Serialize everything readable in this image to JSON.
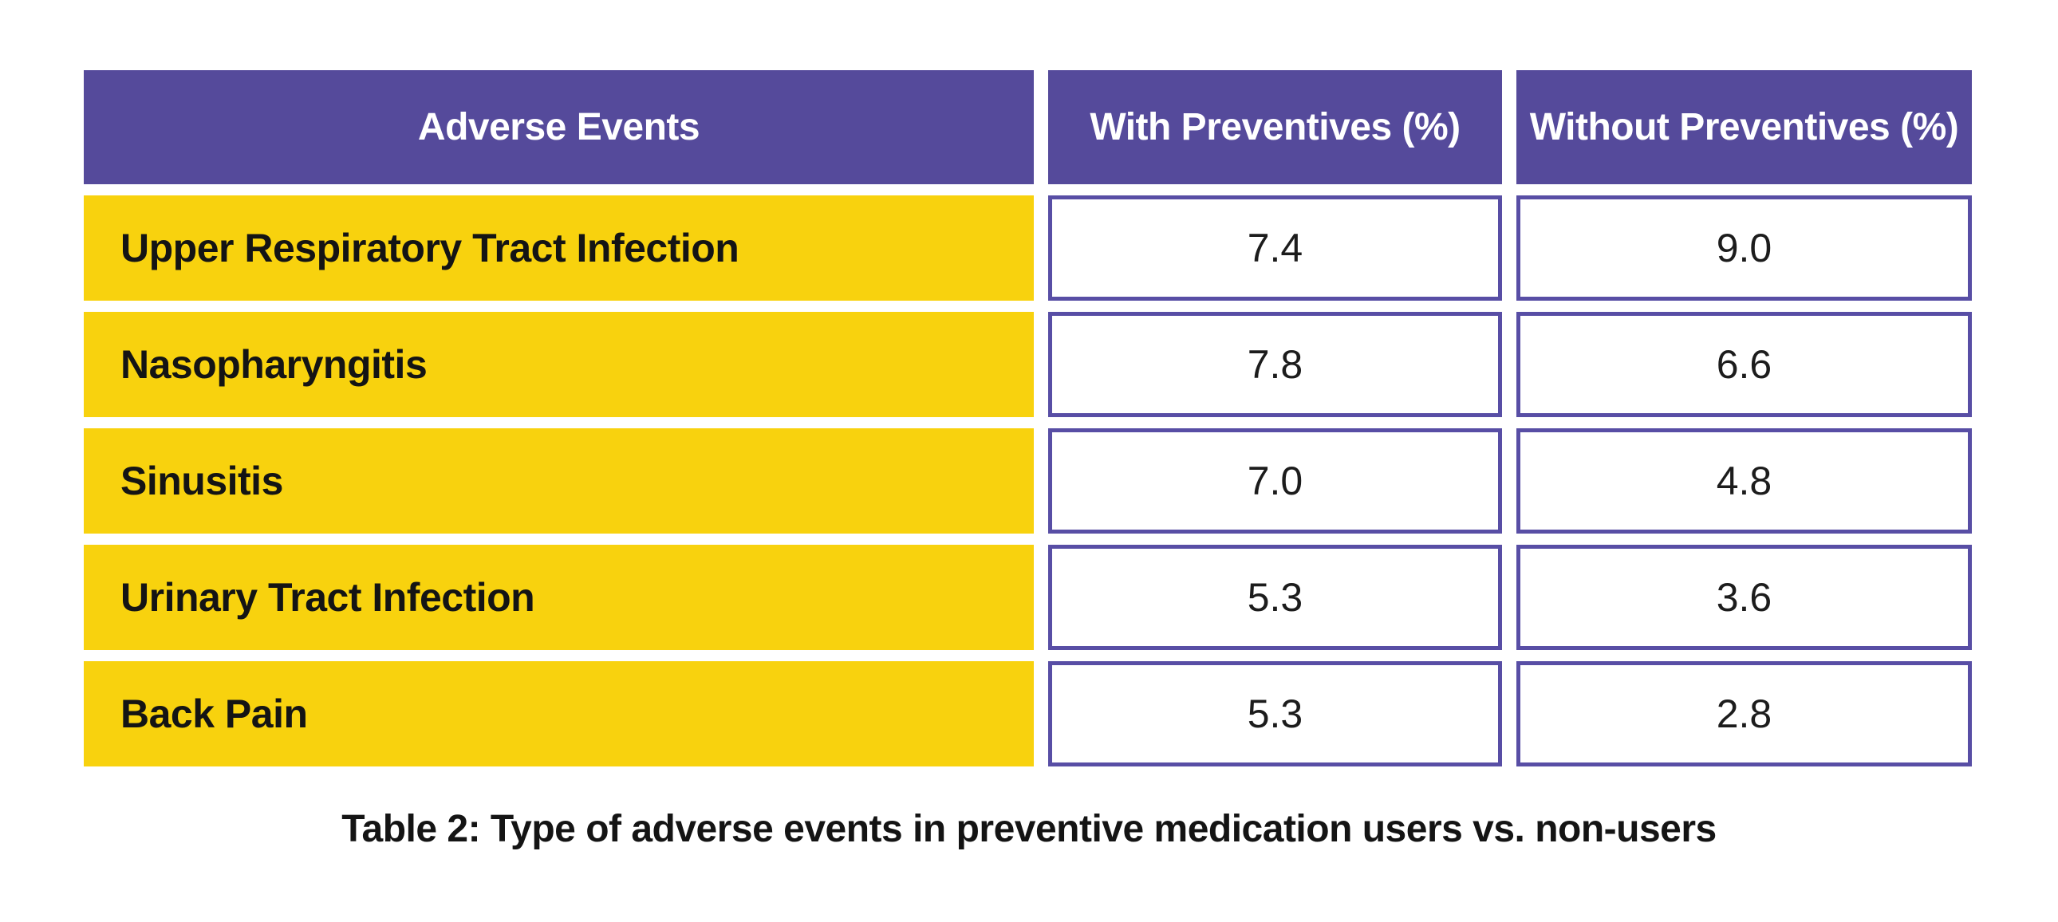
{
  "table": {
    "columns": [
      "Adverse Events",
      "With Preventives (%)",
      "Without Preventives (%)"
    ],
    "rows": [
      {
        "label": "Upper Respiratory Tract Infection",
        "with_pct": "7.4",
        "without_pct": "9.0"
      },
      {
        "label": "Nasopharyngitis",
        "with_pct": "7.8",
        "without_pct": "6.6"
      },
      {
        "label": "Sinusitis",
        "with_pct": "7.0",
        "without_pct": "4.8"
      },
      {
        "label": "Urinary Tract Infection",
        "with_pct": "5.3",
        "without_pct": "3.6"
      },
      {
        "label": "Back Pain",
        "with_pct": "5.3",
        "without_pct": "2.8"
      }
    ],
    "caption": "Table 2: Type of adverse events in preventive medication users vs. non-users"
  },
  "chart_data": {
    "type": "table",
    "title": "Table 2: Type of adverse events in preventive medication users vs. non-users",
    "columns": [
      "Adverse Events",
      "With Preventives (%)",
      "Without Preventives (%)"
    ],
    "categories": [
      "Upper Respiratory Tract Infection",
      "Nasopharyngitis",
      "Sinusitis",
      "Urinary Tract Infection",
      "Back Pain"
    ],
    "series": [
      {
        "name": "With Preventives (%)",
        "values": [
          7.4,
          7.8,
          7.0,
          5.3,
          5.3
        ]
      },
      {
        "name": "Without Preventives (%)",
        "values": [
          9.0,
          6.6,
          4.8,
          3.6,
          2.8
        ]
      }
    ]
  },
  "colors": {
    "purple": "#554A9B",
    "cell_border": "#584EA5",
    "yellow": "#F8D20E",
    "text_dark": "#141414",
    "header_text": "#FFFFFF",
    "bg": "#FFFFFF"
  }
}
